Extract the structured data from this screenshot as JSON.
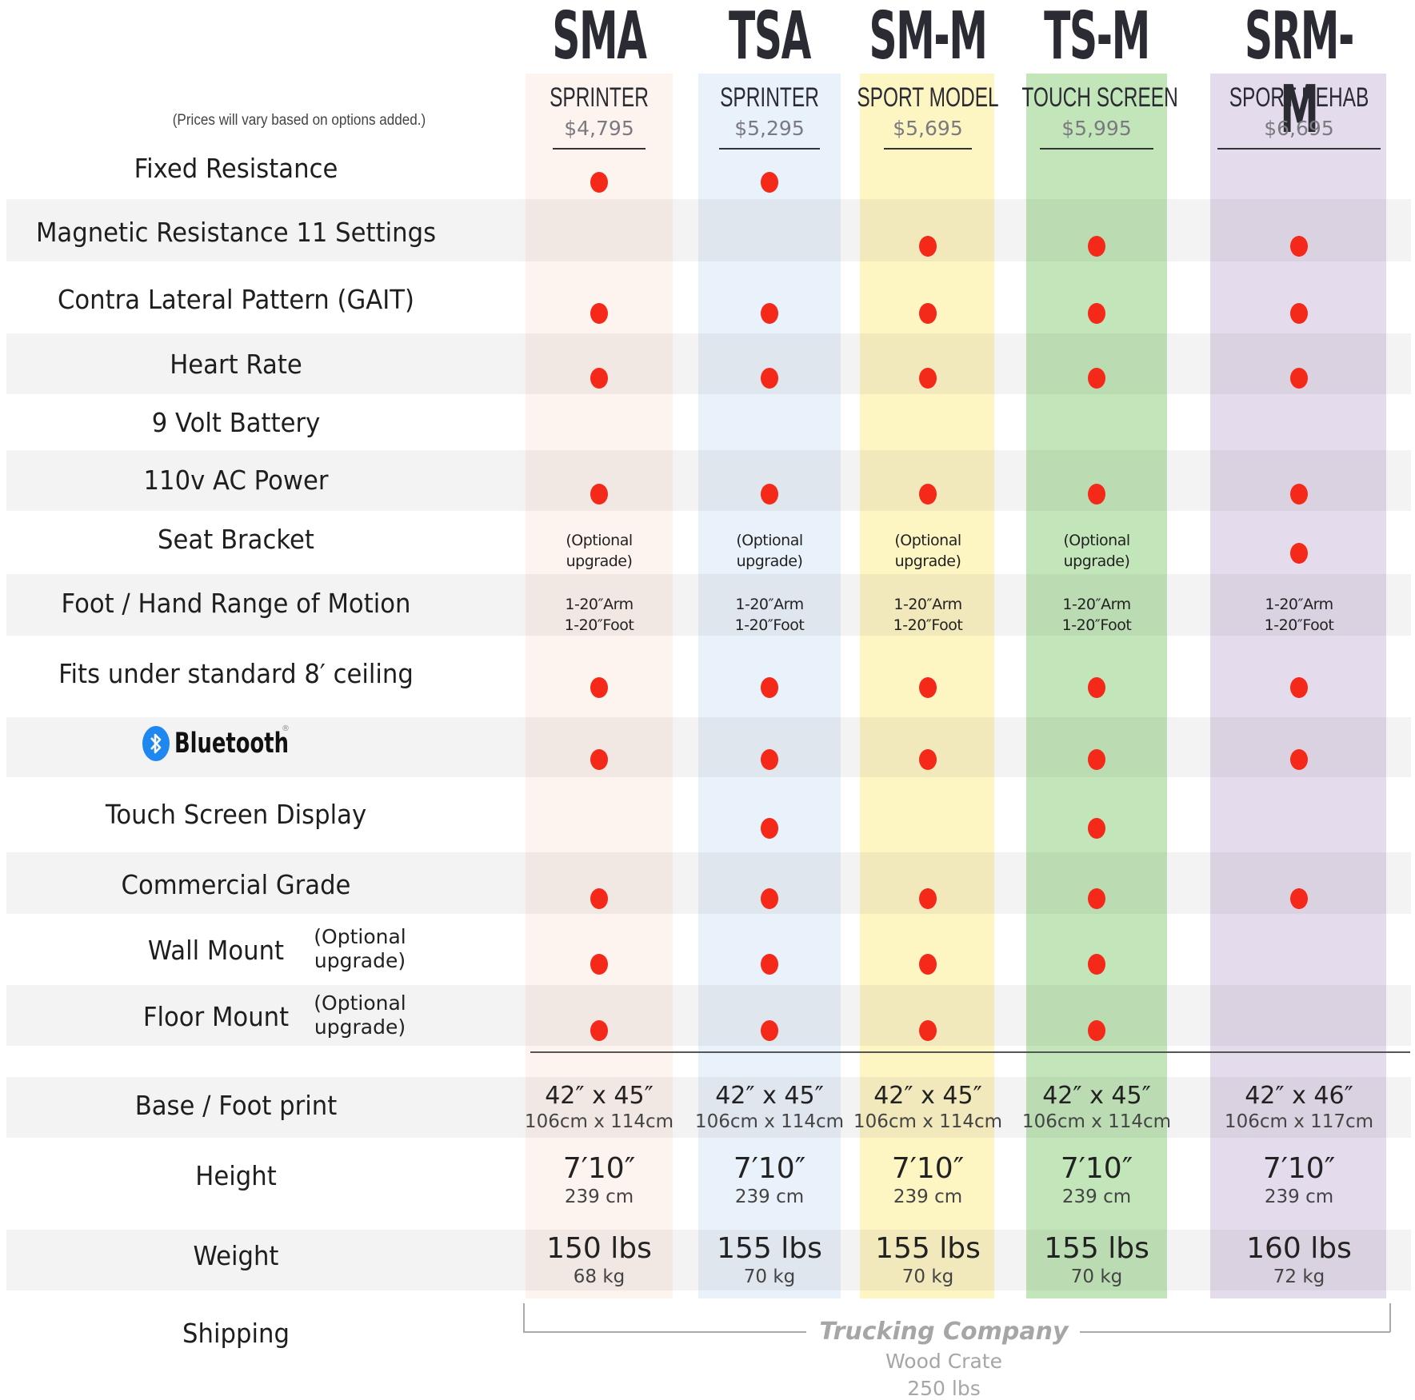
{
  "note": "(Prices will vary based on options added.)",
  "models": [
    {
      "code": "SMA",
      "name": "SPRINTER",
      "price": "$4,795",
      "color": "#fdf3ef"
    },
    {
      "code": "TSA",
      "name": "SPRINTER",
      "price": "$5,295",
      "color": "#e9f1fa"
    },
    {
      "code": "SM-M",
      "name": "SPORT MODEL",
      "price": "$5,695",
      "color": "#fdf5c2"
    },
    {
      "code": "TS-M",
      "name": "TOUCH SCREEN",
      "price": "$5,995",
      "color": "#c2e6b9"
    },
    {
      "code": "SRM-M",
      "name": "SPORT REHAB",
      "price": "$6,695",
      "color": "#e4dbec"
    }
  ],
  "dot_color": "#f5291a",
  "features": [
    {
      "label": "Fixed Resistance",
      "values": [
        true,
        true,
        false,
        false,
        false
      ]
    },
    {
      "label": "Magnetic Resistance  11 Settings",
      "values": [
        false,
        false,
        true,
        true,
        true
      ]
    },
    {
      "label": "Contra Lateral Pattern (GAIT)",
      "values": [
        true,
        true,
        true,
        true,
        true
      ]
    },
    {
      "label": "Heart Rate",
      "values": [
        true,
        true,
        true,
        true,
        true
      ]
    },
    {
      "label": "9  Volt  Battery",
      "values": [
        false,
        false,
        false,
        false,
        false
      ]
    },
    {
      "label": "110v AC Power",
      "values": [
        true,
        true,
        true,
        true,
        true
      ]
    },
    {
      "label": "Seat Bracket",
      "values": [
        "(Optional upgrade)",
        "(Optional upgrade)",
        "(Optional upgrade)",
        "(Optional upgrade)",
        true
      ]
    },
    {
      "label": "Foot / Hand Range of Motion",
      "values": [
        "1-20″Arm|1-20″Foot",
        "1-20″Arm|1-20″Foot",
        "1-20″Arm|1-20″Foot",
        "1-20″Arm|1-20″Foot",
        "1-20″Arm|1-20″Foot"
      ]
    },
    {
      "label": "Fits under standard 8′ ceiling",
      "values": [
        true,
        true,
        true,
        true,
        true
      ]
    },
    {
      "label": "Bluetooth",
      "values": [
        true,
        true,
        true,
        true,
        true
      ]
    },
    {
      "label": "Touch Screen Display",
      "values": [
        false,
        true,
        false,
        true,
        false
      ]
    },
    {
      "label": "Commercial Grade",
      "values": [
        true,
        true,
        true,
        true,
        true
      ]
    },
    {
      "label": "Wall Mount",
      "option_note": "(Optional upgrade)",
      "values": [
        true,
        true,
        true,
        true,
        false
      ]
    },
    {
      "label": "Floor Mount",
      "option_note": "(Optional upgrade)",
      "values": [
        true,
        true,
        true,
        true,
        false
      ]
    }
  ],
  "specs": [
    {
      "label": "Base / Foot print",
      "values": [
        {
          "main": "42″ x 45″",
          "sub": "106cm x 114cm"
        },
        {
          "main": "42″ x 45″",
          "sub": "106cm x 114cm"
        },
        {
          "main": "42″ x 45″",
          "sub": "106cm x 114cm"
        },
        {
          "main": "42″ x 45″",
          "sub": "106cm x 114cm"
        },
        {
          "main": "42″ x 46″",
          "sub": "106cm x 117cm"
        }
      ]
    },
    {
      "label": "Height",
      "values": [
        {
          "main": "7′10″",
          "sub": "239 cm"
        },
        {
          "main": "7′10″",
          "sub": "239 cm"
        },
        {
          "main": "7′10″",
          "sub": "239 cm"
        },
        {
          "main": "7′10″",
          "sub": "239 cm"
        },
        {
          "main": "7′10″",
          "sub": "239 cm"
        }
      ]
    },
    {
      "label": "Weight",
      "values": [
        {
          "main": "150 lbs",
          "sub": "68 kg"
        },
        {
          "main": "155 lbs",
          "sub": "70 kg"
        },
        {
          "main": "155 lbs",
          "sub": "70 kg"
        },
        {
          "main": "155 lbs",
          "sub": "70 kg"
        },
        {
          "main": "160 lbs",
          "sub": "72 kg"
        }
      ]
    }
  ],
  "shipping": {
    "label": "Shipping",
    "method": "Trucking Company",
    "packaging": "Wood Crate",
    "weight": "250 lbs"
  },
  "bluetooth": {
    "label": "Bluetooth",
    "reg": "®",
    "brand_color": "#1e88f0"
  }
}
